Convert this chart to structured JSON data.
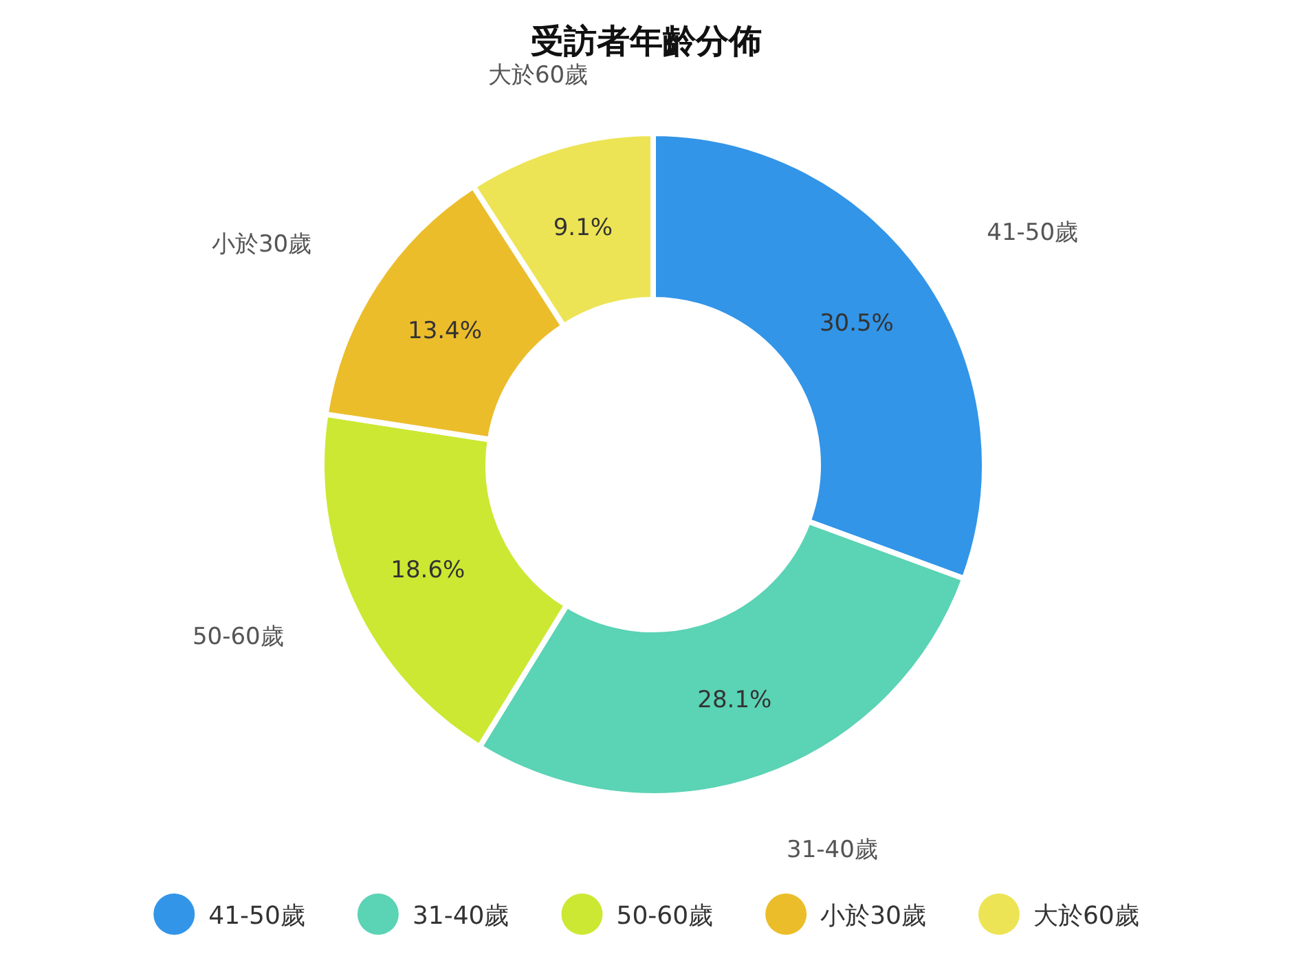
{
  "chart_data": {
    "type": "donut",
    "title": "受訪者年齡分佈",
    "categories": [
      "41-50歲",
      "31-40歲",
      "50-60歲",
      "小於30歲",
      "大於60歲"
    ],
    "values": [
      30.5,
      28.1,
      18.6,
      13.4,
      9.1
    ],
    "value_labels": [
      "30.5%",
      "28.1%",
      "18.6%",
      "13.4%",
      "9.1%"
    ],
    "colors": [
      "#3295e8",
      "#5bd3b5",
      "#cce833",
      "#ecbd2b",
      "#ece454"
    ],
    "legend": "bottom"
  }
}
